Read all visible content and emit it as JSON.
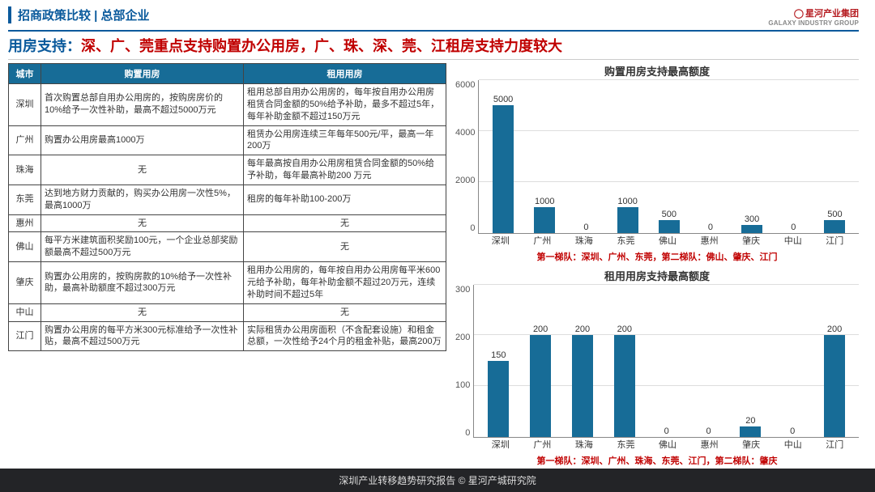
{
  "breadcrumb": "招商政策比较 | 总部企业",
  "logo": {
    "cn": "星河产业集团",
    "en": "GALAXY INDUSTRY GROUP"
  },
  "headline": {
    "label": "用房支持：",
    "text": "深、广、莞重点支持购置办公用房，广、珠、深、莞、江租房支持力度较大"
  },
  "table": {
    "columns": [
      "城市",
      "购置用房",
      "租用用房"
    ],
    "col_widths": [
      "40px",
      "250px",
      "250px"
    ],
    "rows": [
      {
        "city": "深圳",
        "buy": "首次购置总部自用办公用房的，按购房房价的10%给予一次性补助，最高不超过5000万元",
        "rent": "租用总部自用办公用房的，每年按自用办公用房租赁合同金额的50%给予补助，最多不超过5年，每年补助金额不超过150万元"
      },
      {
        "city": "广州",
        "buy": "购置办公用房最高1000万",
        "rent": "租赁办公用房连续三年每年500元/平，最高一年200万"
      },
      {
        "city": "珠海",
        "buy": "无",
        "rent": "每年最高按自用办公用房租赁合同金额的50%给予补助，每年最高补助200 万元"
      },
      {
        "city": "东莞",
        "buy": "达到地方财力贡献的，购买办公用房一次性5%，最高1000万",
        "rent": "租房的每年补助100-200万"
      },
      {
        "city": "惠州",
        "buy": "无",
        "rent": "无"
      },
      {
        "city": "佛山",
        "buy": "每平方米建筑面积奖励100元，一个企业总部奖励额最高不超过500万元",
        "rent": "无"
      },
      {
        "city": "肇庆",
        "buy": "购置办公用房的，按购房款的10%给予一次性补助，最高补助额度不超过300万元",
        "rent": "租用办公用房的，每年按自用办公用房每平米600元给予补助，每年补助金额不超过20万元，连续补助时间不超过5年"
      },
      {
        "city": "中山",
        "buy": "无",
        "rent": "无"
      },
      {
        "city": "江门",
        "buy": "购置办公用房的每平方米300元标准给予一次性补贴，最高不超过500万元",
        "rent": "实际租赁办公用房面积（不含配套设施）和租金总额，一次性给予24个月的租金补贴，最高200万"
      }
    ]
  },
  "chart1": {
    "title": "购置用房支持最高额度",
    "type": "bar",
    "categories": [
      "深圳",
      "广州",
      "珠海",
      "东莞",
      "佛山",
      "惠州",
      "肇庆",
      "中山",
      "江门"
    ],
    "values": [
      5000,
      1000,
      0,
      1000,
      500,
      0,
      300,
      0,
      500
    ],
    "ymax": 6000,
    "ystep": 2000,
    "bar_color": "#176c97",
    "grid_color": "#dddddd",
    "note": "第一梯队：深圳、广州、东莞，第二梯队：佛山、肇庆、江门"
  },
  "chart2": {
    "title": "租用用房支持最高额度",
    "type": "bar",
    "categories": [
      "深圳",
      "广州",
      "珠海",
      "东莞",
      "佛山",
      "惠州",
      "肇庆",
      "中山",
      "江门"
    ],
    "values": [
      150,
      200,
      200,
      200,
      0,
      0,
      20,
      0,
      200
    ],
    "ymax": 300,
    "ystep": 100,
    "bar_color": "#176c97",
    "grid_color": "#dddddd",
    "note": "第一梯队：深圳、广州、珠海、东莞、江门，第二梯队：肇庆"
  },
  "footer": "深圳产业转移趋势研究报告 © 星河产城研究院"
}
